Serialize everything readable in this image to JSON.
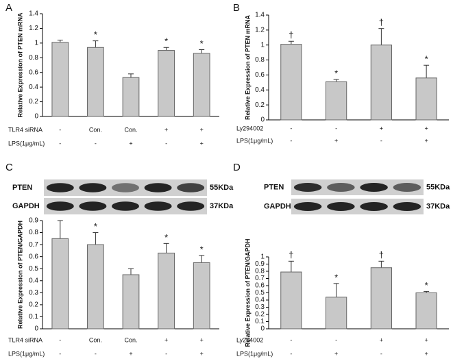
{
  "chart_data": [
    {
      "type": "bar",
      "panel": "A",
      "ylabel": "Relative Expression of PTEN mRNA",
      "values": [
        1.01,
        0.94,
        0.53,
        0.9,
        0.86
      ],
      "errors": [
        0.03,
        0.09,
        0.05,
        0.04,
        0.05
      ],
      "annotations": [
        null,
        "*",
        null,
        "*",
        "*"
      ],
      "color": "#c8c8c8",
      "ylim": [
        0,
        1.4
      ],
      "yticks": [
        0,
        0.2,
        0.4,
        0.6,
        0.8,
        1,
        1.2,
        1.4
      ],
      "conditions": [
        {
          "label": "TLR4 siRNA",
          "values": [
            "-",
            "Con.",
            "Con.",
            "+",
            "+"
          ]
        },
        {
          "label": "LPS(1μg/mL)",
          "values": [
            "-",
            "-",
            "+",
            "-",
            "+"
          ]
        }
      ]
    },
    {
      "type": "bar",
      "panel": "B",
      "ylabel": "Relative Expression of PTEN mRNA",
      "values": [
        1.01,
        0.51,
        1.0,
        0.56
      ],
      "errors": [
        0.04,
        0.03,
        0.22,
        0.17
      ],
      "annotations": [
        "†",
        "*",
        "†",
        "*"
      ],
      "color": "#c8c8c8",
      "ylim": [
        0,
        1.4
      ],
      "yticks": [
        0,
        0.2,
        0.4,
        0.6,
        0.8,
        1,
        1.2,
        1.4
      ],
      "conditions": [
        {
          "label": "Ly294002",
          "values": [
            "-",
            "-",
            "+",
            "+"
          ]
        },
        {
          "label": "LPS(1μg/mL)",
          "values": [
            "-",
            "+",
            "-",
            "+"
          ]
        }
      ]
    },
    {
      "type": "bar",
      "panel": "C",
      "ylabel": "Relative Expression of PTEN/GAPDH",
      "values": [
        0.75,
        0.7,
        0.45,
        0.63,
        0.55
      ],
      "errors": [
        0.15,
        0.1,
        0.05,
        0.08,
        0.06
      ],
      "annotations": [
        null,
        "*",
        null,
        "*",
        "*"
      ],
      "color": "#c8c8c8",
      "ylim": [
        0,
        0.9
      ],
      "yticks": [
        0,
        0.1,
        0.2,
        0.3,
        0.4,
        0.5,
        0.6,
        0.7,
        0.8,
        0.9
      ],
      "blot": [
        {
          "label": "PTEN",
          "size": "55KDa"
        },
        {
          "label": "GAPDH",
          "size": "37KDa"
        }
      ],
      "conditions": [
        {
          "label": "TLR4 siRNA",
          "values": [
            "-",
            "Con.",
            "Con.",
            "+",
            "+"
          ]
        },
        {
          "label": "LPS(1μg/mL)",
          "values": [
            "-",
            "-",
            "+",
            "-",
            "+"
          ]
        }
      ]
    },
    {
      "type": "bar",
      "panel": "D",
      "ylabel": "Relative Expression of PTEN/GAPDH",
      "values": [
        0.79,
        0.44,
        0.85,
        0.5
      ],
      "errors": [
        0.15,
        0.19,
        0.09,
        0.02
      ],
      "annotations": [
        "†",
        "*",
        "†",
        "*"
      ],
      "color": "#c8c8c8",
      "ylim": [
        0,
        1
      ],
      "yticks": [
        0,
        0.1,
        0.2,
        0.3,
        0.4,
        0.5,
        0.6,
        0.7,
        0.8,
        0.9,
        1
      ],
      "blot": [
        {
          "label": "PTEN",
          "size": "55KDa"
        },
        {
          "label": "GAPDH",
          "size": "37KDa"
        }
      ],
      "conditions": [
        {
          "label": "Ly294002",
          "values": [
            "-",
            "-",
            "+",
            "+"
          ]
        },
        {
          "label": "LPS(1μg/mL)",
          "values": [
            "-",
            "+",
            "-",
            "+"
          ]
        }
      ]
    }
  ]
}
